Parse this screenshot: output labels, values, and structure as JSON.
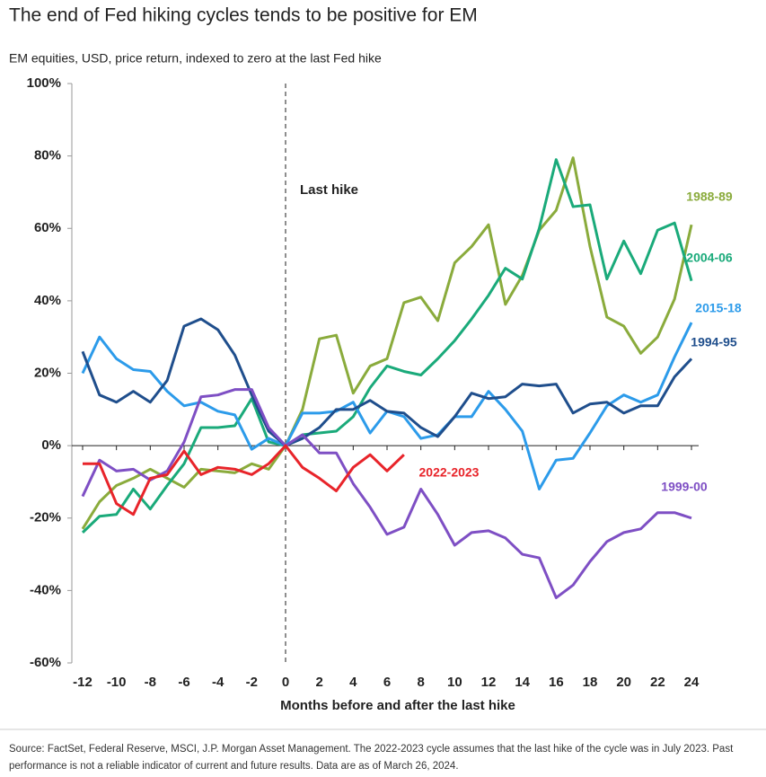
{
  "chart_data": {
    "type": "line",
    "title": "The end of Fed hiking cycles tends to be positive for EM",
    "subtitle": "EM equities, USD, price return, indexed to zero at the last Fed hike",
    "x_label": "Months before and after the last hike",
    "source": [
      "Source: FactSet, Federal Reserve, MSCI, J.P. Morgan Asset Management. The 2022-2023 cycle assumes that the last hike of the cycle was in July 2023. Past",
      "performance is not a reliable indicator of current and future results. Data are as of March 26, 2024."
    ],
    "reference_line": {
      "x": 0,
      "label": "Last hike"
    },
    "x": [
      -12,
      -11,
      -10,
      -9,
      -8,
      -7,
      -6,
      -5,
      -4,
      -3,
      -2,
      -1,
      0,
      1,
      2,
      3,
      4,
      5,
      6,
      7,
      8,
      9,
      10,
      11,
      12,
      13,
      14,
      15,
      16,
      17,
      18,
      19,
      20,
      21,
      22,
      23,
      24
    ],
    "xlim": [
      -12,
      24
    ],
    "xticks": [
      -12,
      -10,
      -8,
      -6,
      -4,
      -2,
      0,
      2,
      4,
      6,
      8,
      10,
      12,
      14,
      16,
      18,
      20,
      22,
      24
    ],
    "ylim": [
      -60,
      100
    ],
    "yticks": [
      {
        "value": -60,
        "label": "-60%"
      },
      {
        "value": -40,
        "label": "-40%"
      },
      {
        "value": -20,
        "label": "-20%"
      },
      {
        "value": 0,
        "label": "0%"
      },
      {
        "value": 20,
        "label": "20%"
      },
      {
        "value": 40,
        "label": "40%"
      },
      {
        "value": 60,
        "label": "60%"
      },
      {
        "value": 80,
        "label": "80%"
      },
      {
        "value": 100,
        "label": "100%"
      }
    ],
    "series": [
      {
        "name": "1988-89",
        "color": "#8aab3c",
        "values": [
          -23,
          -15.5,
          -11,
          -9,
          -6.5,
          -9,
          -11.5,
          -6.5,
          -7,
          -7.5,
          -5,
          -6.5,
          0,
          10,
          29.5,
          30.5,
          14.5,
          22,
          24,
          39.5,
          41,
          34.5,
          50.5,
          55,
          61,
          39,
          47,
          59.5,
          65,
          79.5,
          55,
          35.5,
          33,
          25.5,
          30,
          40.5,
          61
        ]
      },
      {
        "name": "2004-06",
        "color": "#1aaa7a",
        "values": [
          -24,
          -19.5,
          -19,
          -12,
          -17.5,
          -11,
          -5,
          5,
          5,
          5.5,
          13,
          1,
          0,
          3,
          3.5,
          4,
          8,
          16,
          22,
          20.5,
          19.5,
          24,
          29,
          35,
          41.5,
          49,
          46,
          60,
          79,
          66,
          66.5,
          46,
          56.5,
          47.5,
          59.5,
          61.5,
          45.5
        ]
      },
      {
        "name": "2015-18",
        "color": "#2c9bea",
        "values": [
          20,
          30,
          24,
          21,
          20.5,
          15,
          11,
          12,
          9.5,
          8.5,
          -1,
          2,
          0,
          9,
          9,
          9.5,
          12,
          3.5,
          9.5,
          8,
          2,
          3,
          8,
          8,
          15,
          10,
          4,
          -12,
          -4,
          -3.5,
          3.5,
          11,
          14,
          12,
          14,
          24.5,
          34
        ]
      },
      {
        "name": "1994-95",
        "color": "#1f4e8c",
        "values": [
          26,
          14,
          12,
          15,
          12,
          18,
          33,
          35,
          32,
          25,
          14,
          4,
          0,
          2,
          5,
          10,
          10,
          12.5,
          9.5,
          9,
          5,
          2.5,
          8,
          14.5,
          13,
          13.5,
          17,
          16.5,
          17,
          9,
          11.5,
          12,
          9,
          11,
          11,
          19,
          24
        ]
      },
      {
        "name": "1999-00",
        "color": "#7e4fc4",
        "values": [
          -14,
          -4,
          -7,
          -6.5,
          -9.5,
          -7,
          1,
          13.5,
          14,
          15.5,
          15.5,
          5,
          0,
          3,
          -2,
          -2,
          -10.5,
          -17,
          -24.5,
          -22.5,
          -12,
          -19,
          -27.5,
          -24,
          -23.5,
          -25.5,
          -30,
          -31,
          -42,
          -38.5,
          -32,
          -26.5,
          -24,
          -23,
          -18.5,
          -18.5,
          -20
        ]
      },
      {
        "name": "2022-2023",
        "color": "#e8242a",
        "values": [
          -5,
          -5,
          -16,
          -19,
          -9,
          -8,
          -1.5,
          -8,
          -6,
          -6.5,
          -8,
          -5,
          0,
          -6,
          -9,
          -12.5,
          -6,
          -2.5,
          -7,
          -2.5,
          null,
          null,
          null,
          null,
          null,
          null,
          null,
          null,
          null,
          null,
          null,
          null,
          null,
          null,
          null,
          null,
          null
        ]
      }
    ]
  }
}
